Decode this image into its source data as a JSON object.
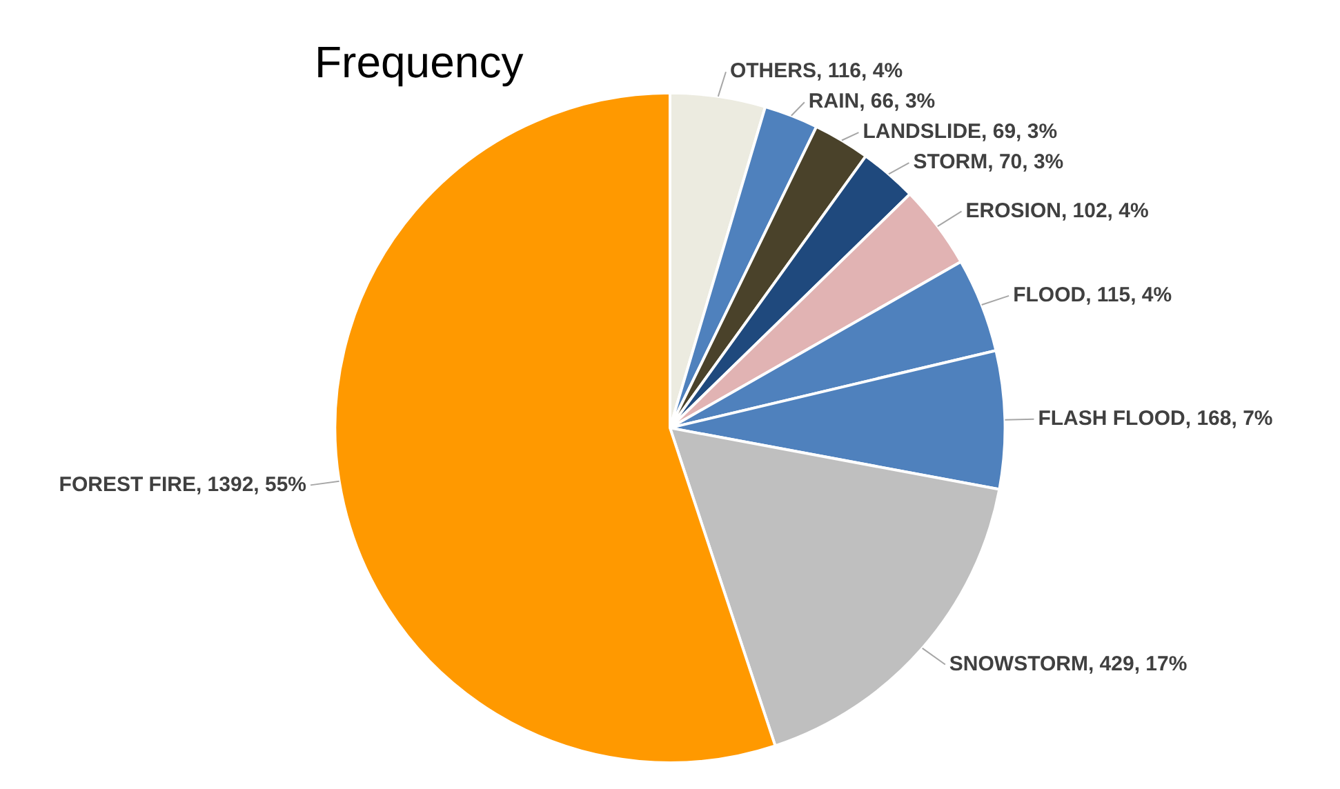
{
  "chart_data": {
    "type": "pie",
    "title": "Frequency",
    "categories": [
      "OTHERS",
      "RAIN",
      "LANDSLIDE",
      "STORM",
      "EROSION",
      "FLOOD",
      "FLASH FLOOD",
      "SNOWSTORM",
      "FOREST FIRE"
    ],
    "values": [
      116,
      66,
      69,
      70,
      102,
      115,
      168,
      429,
      1392
    ],
    "value_labels": [
      "116, 4%",
      "66, 3%",
      "69, 3%",
      "70, 3%",
      "102, 4%",
      "115, 4%",
      "168, 7%",
      "429, 17%",
      "1392, 55%"
    ],
    "colors": [
      "#ecebe0",
      "#4f81bd",
      "#4a422a",
      "#1f497d",
      "#e1b3b3",
      "#4f81bd",
      "#4f81bd",
      "#bfbfbf",
      "#ff9900"
    ],
    "legend": false
  }
}
